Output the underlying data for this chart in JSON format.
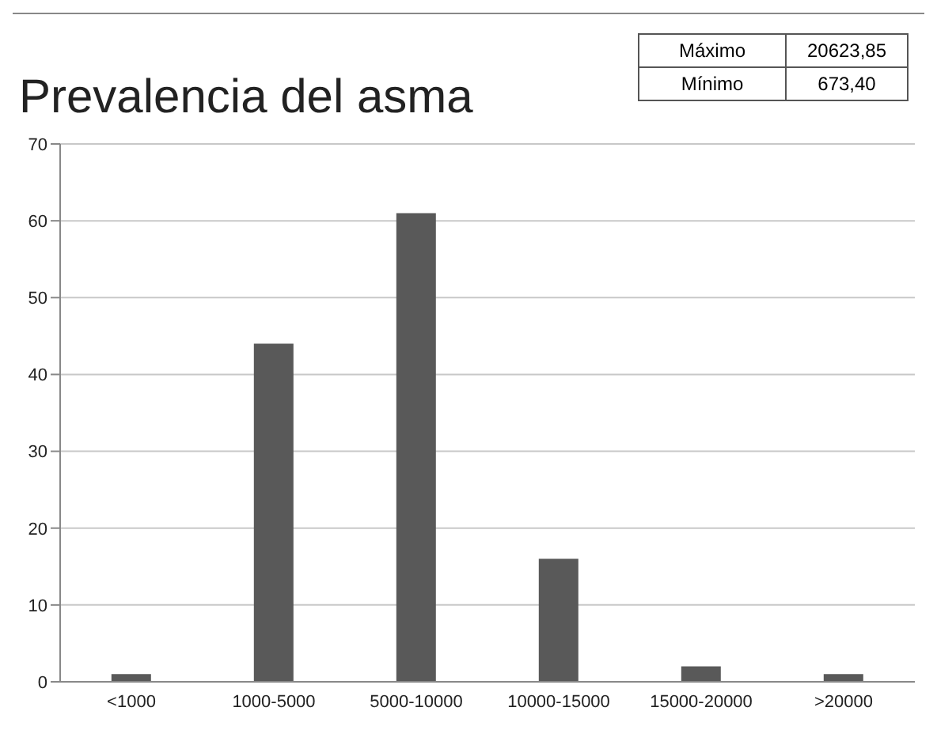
{
  "chart_data": {
    "type": "bar",
    "title": "Prevalencia del asma",
    "categories": [
      "<1000",
      "1000-5000",
      "5000-10000",
      "10000-15000",
      "15000-20000",
      ">20000"
    ],
    "values": [
      1,
      44,
      61,
      16,
      2,
      1
    ],
    "color": "#595959",
    "ylim": [
      0,
      70
    ],
    "yticks": [
      0,
      10,
      20,
      30,
      40,
      50,
      60,
      70
    ],
    "grid": "y",
    "annotations": [
      "Máximo",
      "20623,85",
      "Mínimo",
      "673,40"
    ]
  }
}
